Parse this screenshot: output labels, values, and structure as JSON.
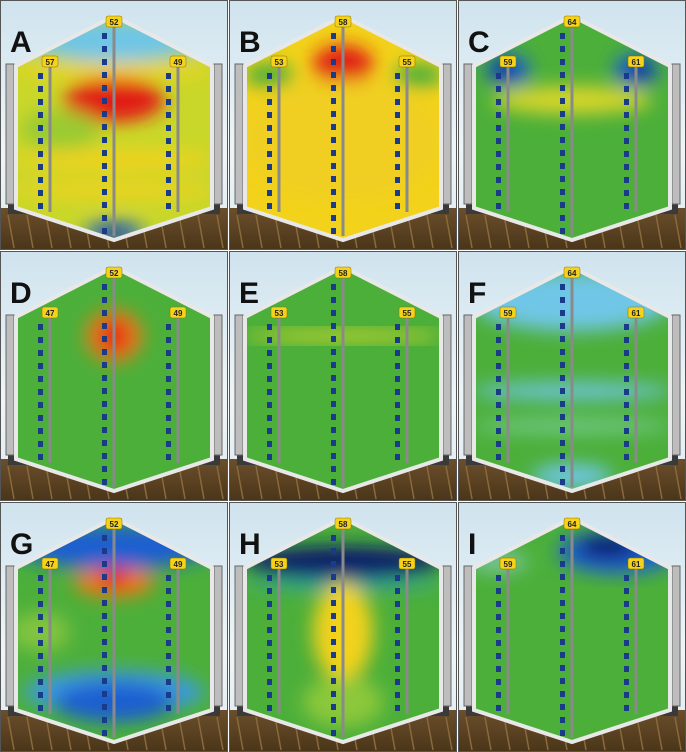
{
  "panels": [
    {
      "letter": "A",
      "cables": [
        "57",
        "52",
        "49"
      ]
    },
    {
      "letter": "B",
      "cables": [
        "53",
        "58",
        "55"
      ]
    },
    {
      "letter": "C",
      "cables": [
        "59",
        "64",
        "61"
      ]
    },
    {
      "letter": "D",
      "cables": [
        "47",
        "52",
        "49"
      ]
    },
    {
      "letter": "E",
      "cables": [
        "53",
        "58",
        "55"
      ]
    },
    {
      "letter": "F",
      "cables": [
        "59",
        "64",
        "61"
      ]
    },
    {
      "letter": "G",
      "cables": [
        "47",
        "52",
        "49"
      ]
    },
    {
      "letter": "H",
      "cables": [
        "53",
        "58",
        "55"
      ]
    },
    {
      "letter": "I",
      "cables": [
        "59",
        "64",
        "61"
      ]
    }
  ]
}
